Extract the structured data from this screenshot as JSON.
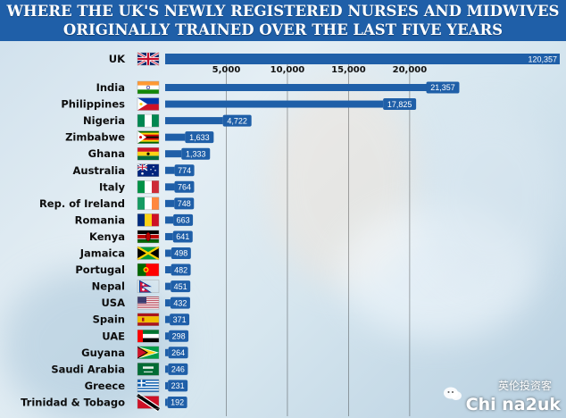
{
  "chart_data": {
    "type": "bar",
    "orientation": "horizontal",
    "title": "WHERE THE UK'S NEWLY REGISTERED NURSES AND MIDWIVES",
    "subtitle": "ORIGINALLY TRAINED OVER THE LAST FIVE YEARS",
    "categories": [
      "UK",
      "India",
      "Philippines",
      "Nigeria",
      "Zimbabwe",
      "Ghana",
      "Australia",
      "Italy",
      "Rep. of Ireland",
      "Romania",
      "Kenya",
      "Jamaica",
      "Portugal",
      "Nepal",
      "USA",
      "Spain",
      "UAE",
      "Guyana",
      "Saudi Arabia",
      "Greece",
      "Trinidad & Tobago"
    ],
    "values": [
      120357,
      21357,
      17825,
      4722,
      1633,
      1333,
      774,
      764,
      748,
      663,
      641,
      498,
      482,
      451,
      432,
      371,
      298,
      264,
      246,
      231,
      192
    ],
    "value_labels": [
      "120,357",
      "21,357",
      "17,825",
      "4,722",
      "1,633",
      "1,333",
      "774",
      "764",
      "748",
      "663",
      "641",
      "498",
      "482",
      "451",
      "432",
      "371",
      "298",
      "264",
      "246",
      "231",
      "192"
    ],
    "x_ticks": [
      5000,
      10000,
      15000,
      20000
    ],
    "x_tick_labels": [
      "5,000",
      "10,000",
      "15,000",
      "20,000"
    ],
    "xlim": [
      0,
      23000
    ],
    "bar_color": "#1f5fa8",
    "grid": true,
    "flags": [
      "uk-flag-icon",
      "india-flag-icon",
      "philippines-flag-icon",
      "nigeria-flag-icon",
      "zimbabwe-flag-icon",
      "ghana-flag-icon",
      "australia-flag-icon",
      "italy-flag-icon",
      "ireland-flag-icon",
      "romania-flag-icon",
      "kenya-flag-icon",
      "jamaica-flag-icon",
      "portugal-flag-icon",
      "nepal-flag-icon",
      "usa-flag-icon",
      "spain-flag-icon",
      "uae-flag-icon",
      "guyana-flag-icon",
      "saudi-arabia-flag-icon",
      "greece-flag-icon",
      "trinidad-tobago-flag-icon"
    ]
  },
  "watermark": {
    "line1": "英伦投资客",
    "line2": "Chi na2uk"
  }
}
